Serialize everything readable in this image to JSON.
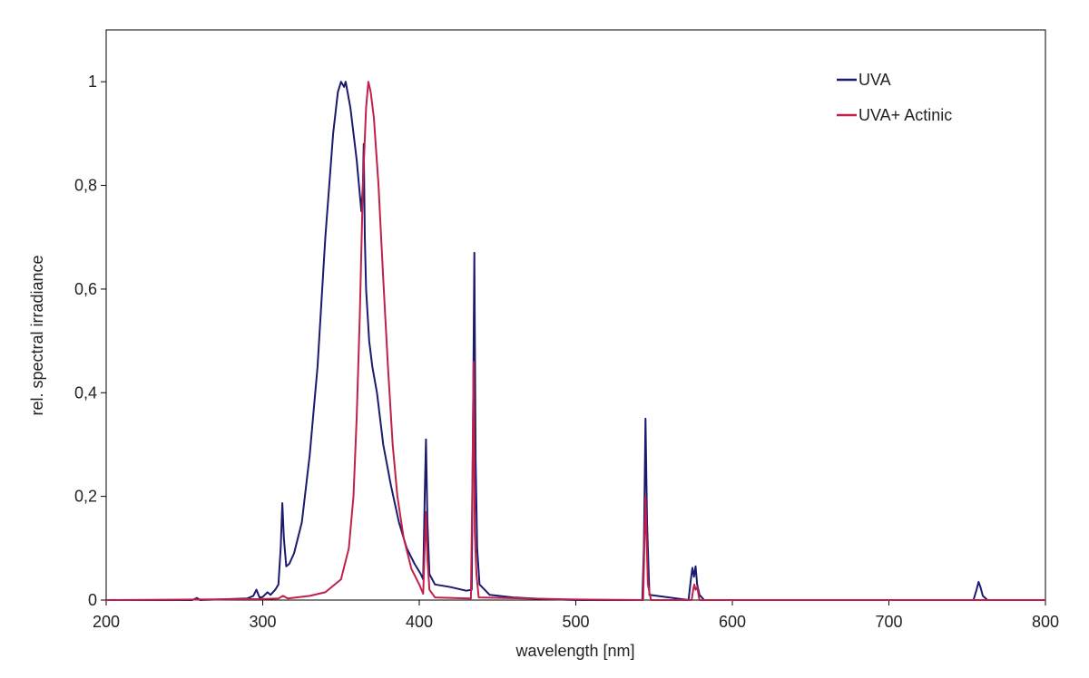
{
  "chart_data": {
    "type": "line",
    "title": "",
    "xlabel": "wavelength [nm]",
    "ylabel": "rel. spectral irradiance",
    "xlim": [
      200,
      800
    ],
    "ylim": [
      0,
      1.1
    ],
    "xticks": [
      200,
      300,
      400,
      500,
      600,
      700,
      800
    ],
    "xtick_labels": [
      "200",
      "300",
      "400",
      "500",
      "600",
      "700",
      "800"
    ],
    "yticks": [
      0,
      0.2,
      0.4,
      0.6,
      0.8,
      1
    ],
    "ytick_labels": [
      "0",
      "0,2",
      "0,4",
      "0,6",
      "0,8",
      "1"
    ],
    "grid": false,
    "legend_position": "top-right",
    "series": [
      {
        "name": "UVA",
        "color": "#1a1a6e",
        "x": [
          200,
          255,
          258,
          260,
          290,
          294,
          296,
          298,
          300,
          303,
          305,
          308,
          310,
          311.5,
          312.5,
          313.5,
          315,
          317,
          320,
          325,
          330,
          335,
          340,
          345,
          348,
          350,
          352,
          353,
          356,
          360,
          363,
          364,
          364.5,
          365.2,
          366,
          368,
          370,
          373,
          377,
          382,
          387,
          392,
          397,
          401,
          402.5,
          403.5,
          404.3,
          405.2,
          406.5,
          410,
          420,
          430,
          433.5,
          434.5,
          435.2,
          436,
          437,
          438.5,
          445,
          460,
          480,
          500,
          542.5,
          543.5,
          544.5,
          545.5,
          547,
          572,
          573.5,
          574.5,
          575.5,
          576.5,
          577.5,
          579,
          582,
          754,
          756,
          757.3,
          758.5,
          760,
          763,
          800
        ],
        "y": [
          0,
          0,
          0.004,
          0,
          0.003,
          0.008,
          0.02,
          0.005,
          0.006,
          0.015,
          0.01,
          0.02,
          0.03,
          0.1,
          0.187,
          0.12,
          0.065,
          0.07,
          0.09,
          0.15,
          0.28,
          0.45,
          0.7,
          0.9,
          0.98,
          1.0,
          0.99,
          1.0,
          0.95,
          0.85,
          0.75,
          0.8,
          0.88,
          0.7,
          0.6,
          0.5,
          0.45,
          0.4,
          0.3,
          0.22,
          0.15,
          0.1,
          0.07,
          0.05,
          0.04,
          0.2,
          0.31,
          0.15,
          0.05,
          0.03,
          0.025,
          0.018,
          0.02,
          0.4,
          0.67,
          0.27,
          0.1,
          0.03,
          0.01,
          0.005,
          0.002,
          0,
          0,
          0.1,
          0.35,
          0.15,
          0.01,
          0,
          0.04,
          0.062,
          0.045,
          0.065,
          0.03,
          0.01,
          0,
          0,
          0.02,
          0.035,
          0.025,
          0.008,
          0,
          0
        ]
      },
      {
        "name": "UVA+ Actinic",
        "color": "#c0204a",
        "x": [
          200,
          260,
          300,
          310,
          313,
          316,
          330,
          340,
          350,
          355,
          358,
          360,
          362,
          364,
          366,
          367.5,
          369,
          371,
          374,
          377,
          380,
          383,
          386,
          390,
          395,
          400,
          402.5,
          403.5,
          404.3,
          405.2,
          406.5,
          410,
          433,
          434,
          434.7,
          435.5,
          436.5,
          438,
          500,
          543,
          544.5,
          546,
          548,
          574,
          575,
          575.7,
          576.5,
          577.5,
          579,
          800
        ],
        "y": [
          0,
          0.001,
          0.002,
          0.003,
          0.008,
          0.003,
          0.008,
          0.015,
          0.04,
          0.1,
          0.2,
          0.35,
          0.55,
          0.8,
          0.95,
          1.0,
          0.98,
          0.93,
          0.8,
          0.62,
          0.45,
          0.3,
          0.2,
          0.12,
          0.06,
          0.03,
          0.012,
          0.1,
          0.17,
          0.08,
          0.02,
          0.005,
          0.003,
          0.25,
          0.46,
          0.13,
          0.05,
          0.005,
          0.001,
          0,
          0.2,
          0.03,
          0,
          0,
          0.02,
          0.03,
          0.02,
          0.025,
          0,
          0
        ]
      }
    ]
  }
}
